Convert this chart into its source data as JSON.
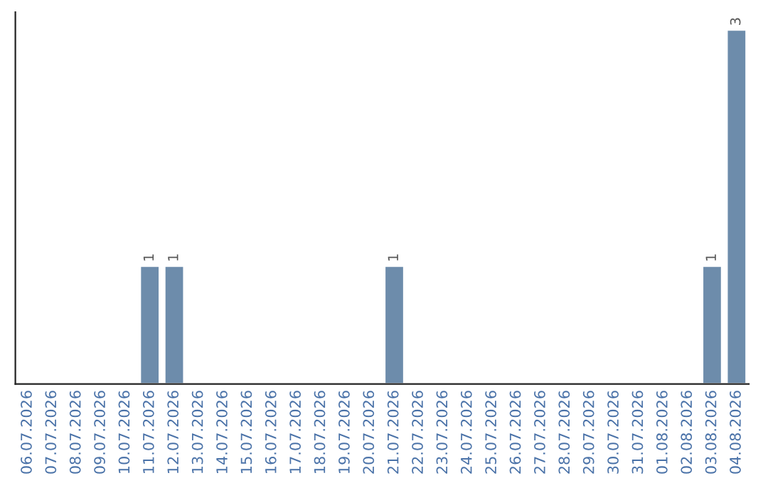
{
  "chart_data": {
    "type": "bar",
    "categories": [
      "06.07.2026",
      "07.07.2026",
      "08.07.2026",
      "09.07.2026",
      "10.07.2026",
      "11.07.2026",
      "12.07.2026",
      "13.07.2026",
      "14.07.2026",
      "15.07.2026",
      "16.07.2026",
      "17.07.2026",
      "18.07.2026",
      "19.07.2026",
      "20.07.2026",
      "21.07.2026",
      "22.07.2026",
      "23.07.2026",
      "24.07.2026",
      "25.07.2026",
      "26.07.2026",
      "27.07.2026",
      "28.07.2026",
      "29.07.2026",
      "30.07.2026",
      "31.07.2026",
      "01.08.2026",
      "02.08.2026",
      "03.08.2026",
      "04.08.2026"
    ],
    "values": [
      null,
      null,
      null,
      null,
      null,
      1,
      1,
      null,
      null,
      null,
      null,
      null,
      null,
      null,
      null,
      1,
      null,
      null,
      null,
      null,
      null,
      null,
      null,
      null,
      null,
      null,
      null,
      null,
      1,
      3
    ],
    "value_labels": [
      null,
      null,
      null,
      null,
      null,
      "1",
      "1",
      null,
      null,
      null,
      null,
      null,
      null,
      null,
      null,
      "1",
      null,
      null,
      null,
      null,
      null,
      null,
      null,
      null,
      null,
      null,
      null,
      null,
      "1",
      "3"
    ],
    "color": "#6d8cab",
    "ylim": [
      0,
      3.15
    ],
    "tick_labels": "x",
    "grid": false,
    "legend": false
  }
}
